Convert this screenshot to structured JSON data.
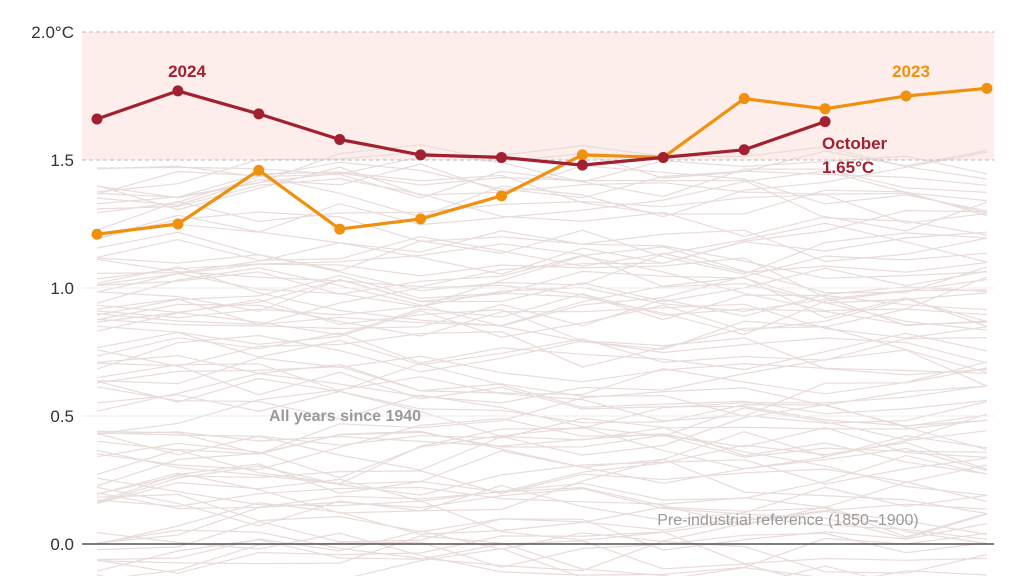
{
  "chart_data": {
    "type": "line",
    "title": "",
    "xlabel": "",
    "ylabel": "",
    "months": 12,
    "ylim": [
      0,
      2.0
    ],
    "y_ticks": [
      {
        "value": 0.0,
        "label": "0.0"
      },
      {
        "value": 0.5,
        "label": "0.5"
      },
      {
        "value": 1.0,
        "label": "1.0"
      },
      {
        "value": 1.5,
        "label": "1.5"
      },
      {
        "value": 2.0,
        "label": "2.0°C"
      }
    ],
    "highlight_band": [
      1.5,
      2.0
    ],
    "series": [
      {
        "name": "2023",
        "color": "#F0900F",
        "values": [
          1.21,
          1.25,
          1.46,
          1.23,
          1.27,
          1.36,
          1.52,
          1.51,
          1.74,
          1.7,
          1.75,
          1.78
        ]
      },
      {
        "name": "2024",
        "color": "#A2202F",
        "values": [
          1.66,
          1.77,
          1.68,
          1.58,
          1.52,
          1.51,
          1.48,
          1.51,
          1.54,
          1.65
        ]
      }
    ],
    "background_series_label": "All years since 1940",
    "background_color": "#E8DCDA",
    "background_series_count": 82,
    "annotations": {
      "callout_month": "October",
      "callout_value": "1.65°C",
      "baseline_label": "Pre-industrial reference (1850–1900)"
    }
  }
}
